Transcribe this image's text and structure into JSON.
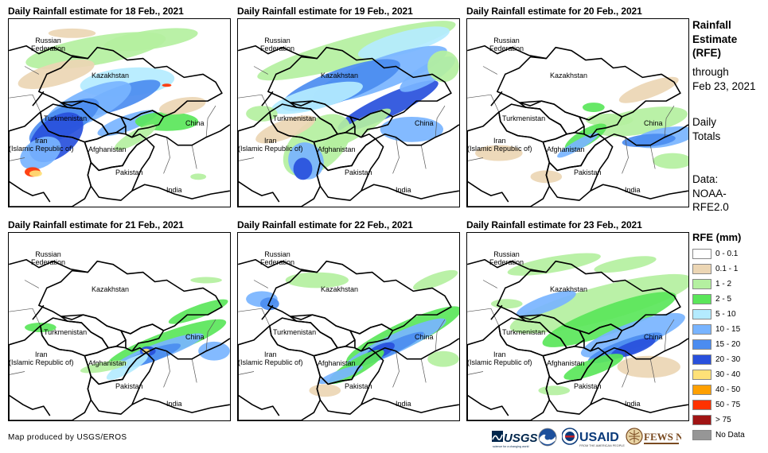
{
  "panels": [
    {
      "title": "Daily Rainfall estimate for 18 Feb., 2021"
    },
    {
      "title": "Daily Rainfall estimate for 19 Feb., 2021"
    },
    {
      "title": "Daily Rainfall estimate for 20 Feb., 2021"
    },
    {
      "title": "Daily Rainfall estimate for 21 Feb., 2021"
    },
    {
      "title": "Daily Rainfall estimate for 22 Feb., 2021"
    },
    {
      "title": "Daily Rainfall estimate for 23 Feb., 2021"
    }
  ],
  "map_labels": {
    "russia": "Russian\nFederation",
    "kazakhstan": "Kazakhstan",
    "turkmenistan": "Turkmenistan",
    "iran": "Iran\n(Islamic Republic of)",
    "afghanistan": "Afghanistan",
    "pakistan": "Pakistan",
    "china": "China",
    "india": "India"
  },
  "side_panel": {
    "title_line1": "Rainfall",
    "title_line2": "Estimate",
    "title_line3": "(RFE)",
    "through": "through",
    "through_date": "Feb 23, 2021",
    "totals_line1": "Daily",
    "totals_line2": "Totals",
    "data_line1": "Data:",
    "data_line2": "NOAA-",
    "data_line3": "RFE2.0"
  },
  "legend": {
    "title": "RFE (mm)",
    "items": [
      {
        "label": "0 - 0.1",
        "color": "#ffffff"
      },
      {
        "label": "0.1 - 1",
        "color": "#ecd6b4"
      },
      {
        "label": "1 - 2",
        "color": "#b4f0a0"
      },
      {
        "label": "2 - 5",
        "color": "#5ae65a"
      },
      {
        "label": "5 - 10",
        "color": "#b4ebff"
      },
      {
        "label": "10 - 15",
        "color": "#78b4ff"
      },
      {
        "label": "15 - 20",
        "color": "#4b8cf0"
      },
      {
        "label": "20 - 30",
        "color": "#2850dc"
      },
      {
        "label": "30 - 40",
        "color": "#ffe178"
      },
      {
        "label": "40 - 50",
        "color": "#ffa000"
      },
      {
        "label": "50 - 75",
        "color": "#ff3200"
      },
      {
        "label": "> 75",
        "color": "#a01414"
      },
      {
        "label": "No Data",
        "color": "#969696"
      }
    ]
  },
  "credit": "Map produced by USGS/EROS",
  "logos": {
    "usgs": "USGS",
    "usaid": "USAID",
    "fewsnet": "FEWS NET"
  }
}
